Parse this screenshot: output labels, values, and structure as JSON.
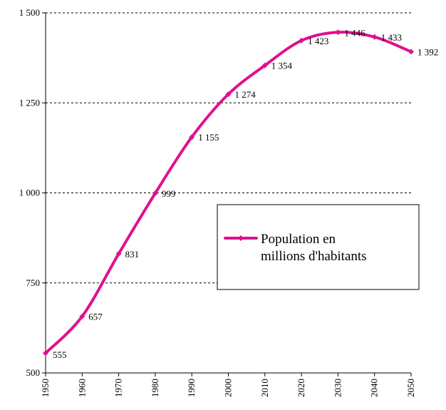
{
  "chart_data": {
    "type": "line",
    "x": [
      "1950",
      "1960",
      "1970",
      "1980",
      "1990",
      "2000",
      "2010",
      "2020",
      "2030",
      "2040",
      "2050"
    ],
    "series": [
      {
        "name": "Population en millions d'habitants",
        "values": [
          555,
          657,
          831,
          999,
          1155,
          1274,
          1354,
          1423,
          1446,
          1433,
          1392
        ],
        "data_labels": [
          "555",
          "657",
          "831",
          "999",
          "1 155",
          "1 274",
          "1 354",
          "1 423",
          "1 446",
          "1 433",
          "1 392"
        ],
        "color": "#e0108f"
      }
    ],
    "y_ticks": [
      500,
      750,
      1000,
      1250,
      1500
    ],
    "y_tick_labels": [
      "500",
      "750",
      "1 000",
      "1 250",
      "1 500"
    ],
    "ylim": [
      500,
      1500
    ],
    "xlim": [
      1950,
      2050
    ],
    "grid": "horizontal dashed",
    "legend": {
      "position": "center-right",
      "lines": [
        "Population en",
        "millions d'habitants"
      ]
    },
    "title": "",
    "xlabel": "",
    "ylabel": ""
  }
}
